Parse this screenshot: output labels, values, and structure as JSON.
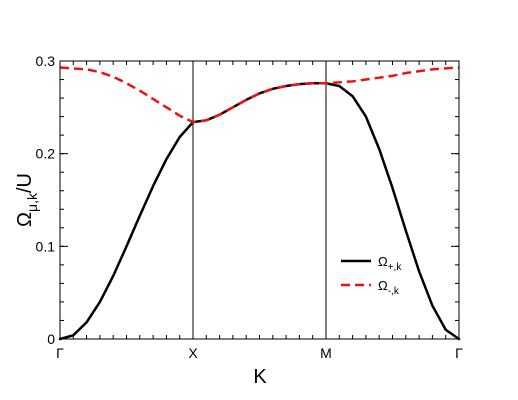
{
  "chart_data": {
    "type": "line",
    "xlabel": "K",
    "ylabel": {
      "symbol": "Ω",
      "subscript": "μ,k",
      "suffix": "/U"
    },
    "x_ticks": [
      {
        "label": "Γ",
        "x": 0
      },
      {
        "label": "X",
        "x": 1
      },
      {
        "label": "M",
        "x": 2
      },
      {
        "label": "Γ",
        "x": 3
      }
    ],
    "xlim": [
      0,
      3
    ],
    "ylim": [
      0,
      0.3
    ],
    "y_ticks": [
      {
        "value": 0,
        "label": "0"
      },
      {
        "value": 0.1,
        "label": "0.1"
      },
      {
        "value": 0.2,
        "label": "0.2"
      },
      {
        "value": 0.3,
        "label": "0.3"
      }
    ],
    "minor_x_ticks_per_segment": 10,
    "minor_y_step": 0.02,
    "vertical_lines_at": [
      1,
      2
    ],
    "legend": {
      "placement": "lower-right"
    },
    "series": [
      {
        "name": {
          "symbol": "Ω",
          "subscript": "+,k"
        },
        "color": "#000000",
        "dash": "solid",
        "x": [
          0,
          0.1,
          0.2,
          0.3,
          0.4,
          0.5,
          0.6,
          0.7,
          0.8,
          0.9,
          1.0,
          1.1,
          1.2,
          1.3,
          1.4,
          1.5,
          1.6,
          1.7,
          1.8,
          1.9,
          2.0,
          2.1,
          2.2,
          2.3,
          2.4,
          2.5,
          2.6,
          2.7,
          2.8,
          2.9,
          3.0
        ],
        "y": [
          0,
          0.004,
          0.018,
          0.04,
          0.068,
          0.1,
          0.133,
          0.165,
          0.194,
          0.218,
          0.234,
          0.236,
          0.242,
          0.25,
          0.258,
          0.265,
          0.27,
          0.273,
          0.275,
          0.276,
          0.276,
          0.273,
          0.262,
          0.24,
          0.205,
          0.163,
          0.117,
          0.073,
          0.036,
          0.01,
          0
        ]
      },
      {
        "name": {
          "symbol": "Ω",
          "subscript": "-,k"
        },
        "color": "#ee1111",
        "dash": "dashed",
        "x": [
          0,
          0.1,
          0.2,
          0.3,
          0.4,
          0.5,
          0.6,
          0.7,
          0.8,
          0.9,
          1.0,
          1.1,
          1.2,
          1.3,
          1.4,
          1.5,
          1.6,
          1.7,
          1.8,
          1.9,
          2.0,
          2.1,
          2.2,
          2.3,
          2.4,
          2.5,
          2.6,
          2.7,
          2.8,
          2.9,
          3.0
        ],
        "y": [
          0.293,
          0.292,
          0.291,
          0.288,
          0.283,
          0.276,
          0.268,
          0.259,
          0.25,
          0.241,
          0.234,
          0.236,
          0.242,
          0.25,
          0.258,
          0.265,
          0.27,
          0.273,
          0.275,
          0.276,
          0.276,
          0.277,
          0.278,
          0.28,
          0.282,
          0.284,
          0.287,
          0.289,
          0.291,
          0.292,
          0.293
        ]
      }
    ]
  }
}
